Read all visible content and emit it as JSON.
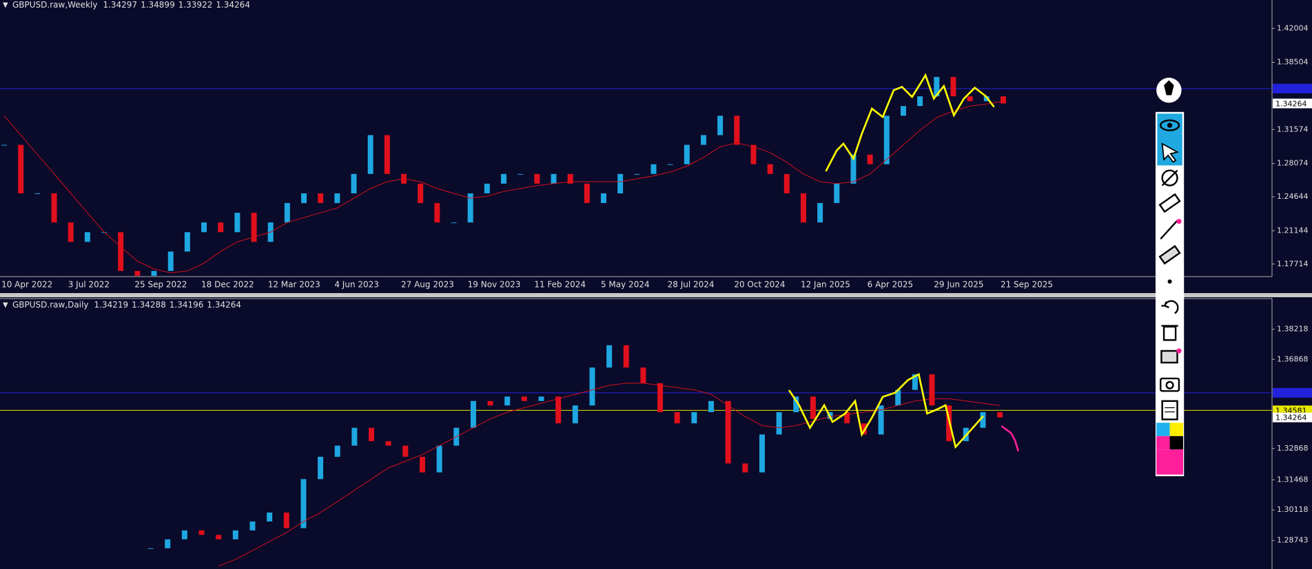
{
  "chart_data": [
    {
      "type": "candlestick",
      "title": "GBPUSD.raw,Weekly",
      "header_values": [
        1.34297,
        1.34899,
        1.33922,
        1.34264
      ],
      "categories": [
        "10 Apr 2022",
        null,
        null,
        null,
        "3 Jul 2022",
        null,
        null,
        null,
        "25 Sep 2022",
        null,
        null,
        null,
        "18 Dec 2022",
        null,
        null,
        null,
        "12 Mar 2023",
        null,
        null,
        null,
        "4 Jun 2023",
        null,
        null,
        null,
        "27 Aug 2023",
        null,
        null,
        null,
        "19 Nov 2023",
        null,
        null,
        null,
        "11 Feb 2024",
        null,
        null,
        null,
        "5 May 2024",
        null,
        null,
        null,
        "28 Jul 2024",
        null,
        null,
        null,
        "20 Oct 2024",
        null,
        null,
        null,
        "12 Jan 2025",
        null,
        null,
        null,
        "6 Apr 2025",
        null,
        null,
        null,
        "29 Jun 2025",
        null,
        null,
        null,
        "21 Sep 2025"
      ],
      "values": [
        1.3,
        1.25,
        1.25,
        1.22,
        1.2,
        1.21,
        1.21,
        1.17,
        1.165,
        1.17,
        1.19,
        1.21,
        1.22,
        1.21,
        1.23,
        1.2,
        1.22,
        1.24,
        1.25,
        1.24,
        1.25,
        1.27,
        1.31,
        1.27,
        1.26,
        1.24,
        1.22,
        1.22,
        1.25,
        1.26,
        1.27,
        1.27,
        1.26,
        1.27,
        1.26,
        1.24,
        1.25,
        1.27,
        1.27,
        1.28,
        1.28,
        1.3,
        1.31,
        1.33,
        1.3,
        1.28,
        1.27,
        1.25,
        1.22,
        1.24,
        1.26,
        1.29,
        1.28,
        1.33,
        1.34,
        1.35,
        1.37,
        1.35,
        1.345,
        1.35,
        1.34264
      ],
      "moving_average": [
        1.33,
        1.31,
        1.29,
        1.27,
        1.25,
        1.23,
        1.21,
        1.195,
        1.18,
        1.172,
        1.168,
        1.17,
        1.178,
        1.19,
        1.2,
        1.205,
        1.21,
        1.22,
        1.225,
        1.23,
        1.235,
        1.245,
        1.255,
        1.262,
        1.265,
        1.262,
        1.255,
        1.25,
        1.245,
        1.247,
        1.252,
        1.255,
        1.258,
        1.26,
        1.262,
        1.262,
        1.262,
        1.262,
        1.265,
        1.268,
        1.272,
        1.278,
        1.287,
        1.298,
        1.302,
        1.298,
        1.292,
        1.282,
        1.27,
        1.262,
        1.26,
        1.262,
        1.27,
        1.285,
        1.3,
        1.315,
        1.328,
        1.335,
        1.34,
        1.342,
        1.345
      ],
      "ylim": [
        1.1642,
        1.4493
      ],
      "yticks": [
        1.42004,
        1.38504,
        1.31574,
        1.28074,
        1.24644,
        1.21144,
        1.17714
      ],
      "levels": [
        {
          "value": 1.358,
          "color": "#2222dd"
        }
      ],
      "up_color": "#1ea7e1",
      "down_color": "#e0101c",
      "ma_color": "#d4101c"
    },
    {
      "type": "candlestick",
      "title": "GBPUSD.raw,Daily",
      "header_values": [
        1.34219,
        1.34288,
        1.34196,
        1.34264
      ],
      "values": [
        1.284,
        1.288,
        1.292,
        1.29,
        1.288,
        1.292,
        1.296,
        1.3,
        1.293,
        1.315,
        1.325,
        1.33,
        1.338,
        1.332,
        1.33,
        1.325,
        1.318,
        1.33,
        1.338,
        1.35,
        1.348,
        1.352,
        1.35,
        1.352,
        1.34,
        1.348,
        1.365,
        1.375,
        1.365,
        1.358,
        1.345,
        1.34,
        1.345,
        1.35,
        1.322,
        1.318,
        1.335,
        1.345,
        1.352,
        1.342,
        1.345,
        1.34,
        1.335,
        1.348,
        1.355,
        1.362,
        1.348,
        1.332,
        1.338,
        1.345,
        1.34264
      ],
      "moving_average": [
        null,
        null,
        null,
        null,
        1.276,
        1.279,
        1.283,
        1.287,
        1.291,
        1.296,
        1.3,
        1.305,
        1.31,
        1.315,
        1.32,
        1.323,
        1.326,
        1.33,
        1.334,
        1.338,
        1.342,
        1.345,
        1.347,
        1.349,
        1.351,
        1.353,
        1.355,
        1.357,
        1.358,
        1.358,
        1.357,
        1.356,
        1.355,
        1.353,
        1.348,
        1.343,
        1.339,
        1.338,
        1.339,
        1.341,
        1.343,
        1.344,
        1.345,
        1.346,
        1.348,
        1.35,
        1.351,
        1.351,
        1.35,
        1.349,
        1.348
      ],
      "ylim": [
        1.2747,
        1.3959
      ],
      "yticks": [
        1.38218,
        1.36868,
        1.32868,
        1.31468,
        1.30118,
        1.28743
      ],
      "levels": [
        {
          "value": 1.3537,
          "color": "#2222dd"
        },
        {
          "value": 1.34581,
          "color": "#e8e800",
          "label": "1.34581"
        }
      ],
      "up_color": "#1ea7e1",
      "down_color": "#e0101c",
      "ma_color": "#d4101c"
    }
  ]
}
